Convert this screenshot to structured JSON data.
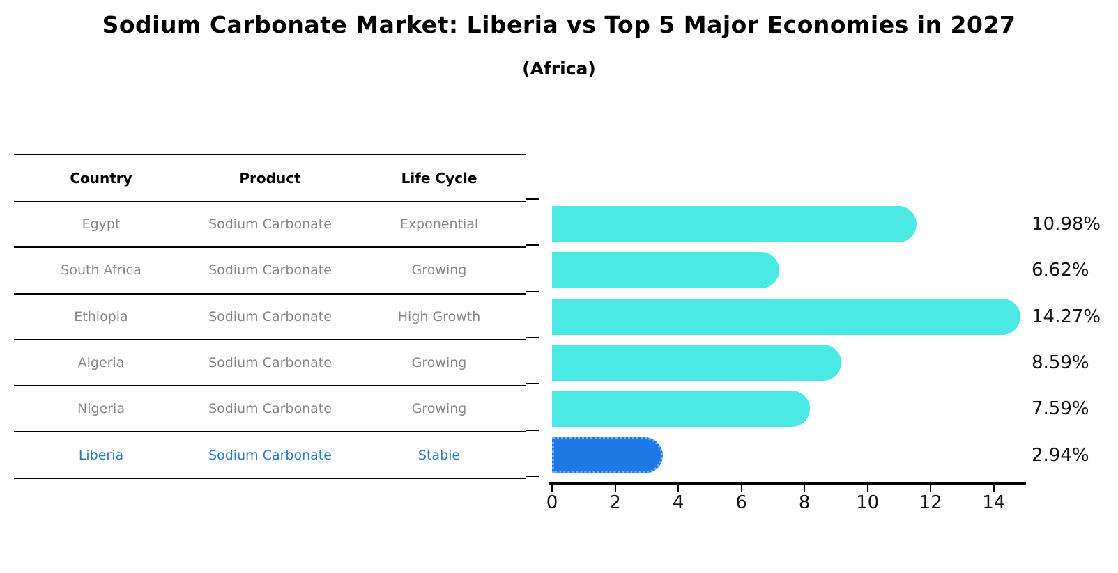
{
  "title": "Sodium Carbonate Market: Liberia vs Top 5 Major Economies in 2027",
  "subtitle": "(Africa)",
  "table": {
    "headers": [
      "Country",
      "Product",
      "Life Cycle"
    ],
    "rows": [
      {
        "country": "Egypt",
        "product": "Sodium Carbonate",
        "life_cycle": "Exponential",
        "highlight": false
      },
      {
        "country": "South Africa",
        "product": "Sodium Carbonate",
        "life_cycle": "Growing",
        "highlight": false
      },
      {
        "country": "Ethiopia",
        "product": "Sodium Carbonate",
        "life_cycle": "High Growth",
        "highlight": false
      },
      {
        "country": "Algeria",
        "product": "Sodium Carbonate",
        "life_cycle": "Growing",
        "highlight": false
      },
      {
        "country": "Nigeria",
        "product": "Sodium Carbonate",
        "life_cycle": "Growing",
        "highlight": false
      },
      {
        "country": "Liberia",
        "product": "Sodium Carbonate",
        "life_cycle": "Stable",
        "highlight": true
      }
    ]
  },
  "chart_data": {
    "type": "bar",
    "orientation": "horizontal",
    "title": "Sodium Carbonate Market: Liberia vs Top 5 Major Economies in 2027",
    "subtitle": "(Africa)",
    "categories": [
      "Egypt",
      "South Africa",
      "Ethiopia",
      "Algeria",
      "Nigeria",
      "Liberia"
    ],
    "values": [
      10.98,
      6.62,
      14.27,
      8.59,
      7.59,
      2.94
    ],
    "value_labels": [
      "10.98%",
      "6.62%",
      "14.27%",
      "8.59%",
      "7.59%",
      "2.94%"
    ],
    "x_ticks": [
      0,
      2,
      4,
      6,
      8,
      10,
      12,
      14
    ],
    "xlim": [
      0,
      15
    ],
    "xlabel": "",
    "ylabel": "",
    "grid": false,
    "legend": false,
    "bar_color": "#4ae9e3",
    "highlight_color": "#1e78e6",
    "highlight_category": "Liberia",
    "highlight_text_color": "#2878c8"
  },
  "colors": {
    "background": "#ffffff",
    "table_text": "#878787",
    "header_text": "#000000",
    "axis": "#000000"
  }
}
